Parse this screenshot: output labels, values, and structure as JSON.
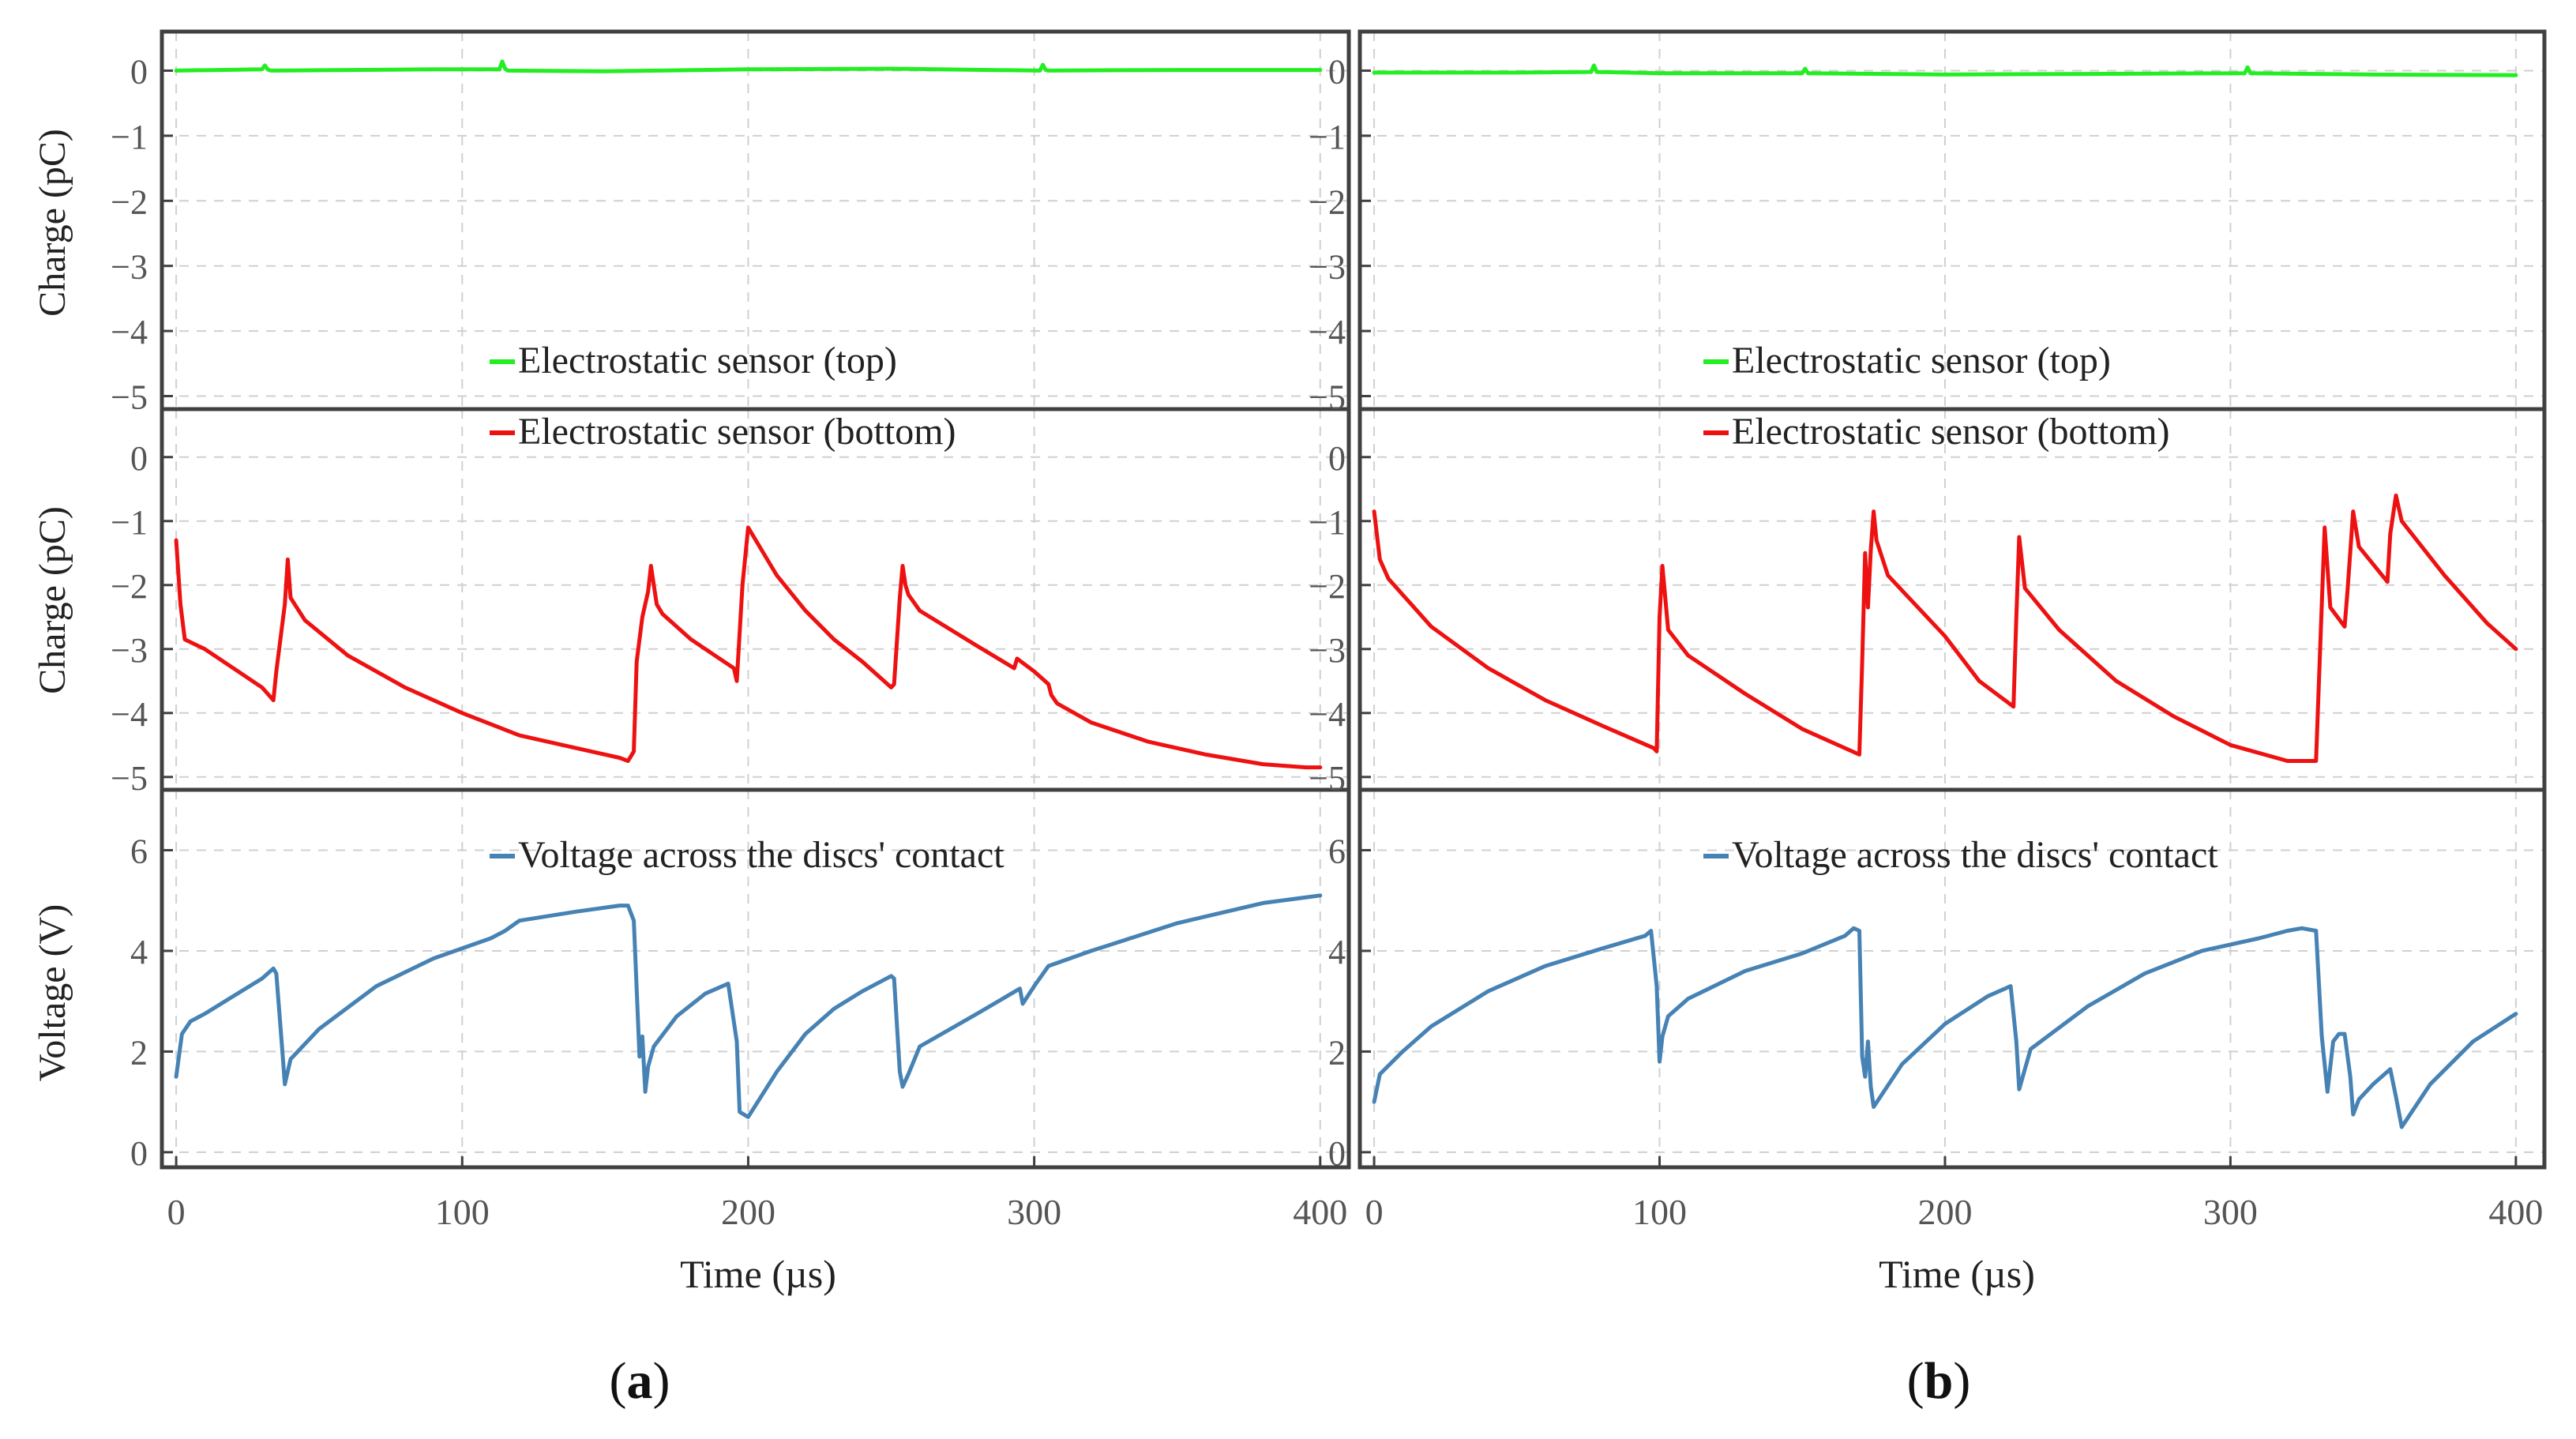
{
  "figure": {
    "x_label": "Time (µs)",
    "x_ticks": [
      0,
      100,
      200,
      300,
      400
    ],
    "x_tick_labels": [
      "0",
      "100",
      "200",
      "300",
      "400"
    ],
    "colors": {
      "top": "#22ee22",
      "bottom": "#ee1111",
      "voltage": "#4682b4",
      "frame": "#404040",
      "grid": "#d0d0d0",
      "tick_text": "#555555"
    }
  },
  "rows": [
    {
      "id": "top",
      "y_label": "Charge (pC)",
      "y_ticks": [
        0,
        -1,
        -2,
        -3,
        -4,
        -5
      ],
      "y_tick_labels": [
        "0",
        "−1",
        "−2",
        "−3",
        "−4",
        "−5"
      ],
      "legend": "Electrostatic sensor (top)",
      "color_key": "top"
    },
    {
      "id": "bottom",
      "y_label": "Charge (pC)",
      "y_ticks": [
        0,
        -1,
        -2,
        -3,
        -4,
        -5
      ],
      "y_tick_labels": [
        "0",
        "−1",
        "−2",
        "−3",
        "−4",
        "−5"
      ],
      "legend": "Electrostatic sensor (bottom)",
      "color_key": "bottom"
    },
    {
      "id": "voltage",
      "y_label": "Voltage (V)",
      "y_ticks": [
        0,
        2,
        4,
        6
      ],
      "y_tick_labels": [
        "0",
        "2",
        "4",
        "6"
      ],
      "legend": "Voltage across the discs' contact",
      "color_key": "voltage"
    }
  ],
  "panels": [
    {
      "id": "a",
      "caption_open": "(",
      "caption_letter": "a",
      "caption_close": ")"
    },
    {
      "id": "b",
      "caption_open": "(",
      "caption_letter": "b",
      "caption_close": ")"
    }
  ],
  "chart_data": [
    {
      "type": "line",
      "panel": "a",
      "title": "Electrostatic sensor (top)",
      "xlabel": "Time (µs)",
      "ylabel": "Charge (pC)",
      "xlim": [
        -5,
        410
      ],
      "ylim": [
        -5.2,
        0.6
      ],
      "x": [
        0,
        30,
        31,
        32,
        33,
        60,
        90,
        113,
        114,
        115,
        116,
        150,
        200,
        250,
        302,
        303,
        304,
        305,
        350,
        400
      ],
      "y": [
        0,
        0.02,
        0.08,
        0.02,
        0,
        0.01,
        0.02,
        0.02,
        0.14,
        0.03,
        0,
        -0.01,
        0.02,
        0.03,
        0,
        0.09,
        0.01,
        0,
        0.01,
        0.01
      ]
    },
    {
      "type": "line",
      "panel": "a",
      "title": "Electrostatic sensor (bottom)",
      "xlabel": "Time (µs)",
      "ylabel": "Charge (pC)",
      "xlim": [
        -5,
        410
      ],
      "ylim": [
        -5.2,
        0.75
      ],
      "x": [
        0,
        1.5,
        3,
        10,
        20,
        30,
        34,
        35,
        38,
        39,
        40,
        45,
        60,
        80,
        100,
        120,
        140,
        155,
        158,
        160,
        161,
        163,
        165,
        166,
        168,
        170,
        180,
        190,
        195,
        196,
        198,
        200,
        210,
        220,
        230,
        240,
        250,
        251,
        253,
        254,
        255,
        256,
        260,
        280,
        293,
        294,
        297,
        300,
        305,
        306,
        308,
        320,
        340,
        360,
        380,
        395,
        400
      ],
      "y": [
        -1.3,
        -2.3,
        -2.85,
        -3.0,
        -3.3,
        -3.6,
        -3.8,
        -3.35,
        -2.3,
        -1.6,
        -2.2,
        -2.55,
        -3.1,
        -3.6,
        -4.0,
        -4.35,
        -4.55,
        -4.7,
        -4.75,
        -4.6,
        -3.2,
        -2.5,
        -2.1,
        -1.7,
        -2.3,
        -2.45,
        -2.85,
        -3.15,
        -3.3,
        -3.5,
        -2.0,
        -1.1,
        -1.85,
        -2.4,
        -2.85,
        -3.2,
        -3.6,
        -3.55,
        -2.2,
        -1.7,
        -2.0,
        -2.15,
        -2.4,
        -2.95,
        -3.3,
        -3.15,
        -3.25,
        -3.35,
        -3.55,
        -3.72,
        -3.85,
        -4.15,
        -4.45,
        -4.65,
        -4.8,
        -4.85,
        -4.85
      ]
    },
    {
      "type": "line",
      "panel": "a",
      "title": "Voltage across the discs' contact",
      "xlabel": "Time (µs)",
      "ylabel": "Voltage (V)",
      "xlim": [
        -5,
        410
      ],
      "ylim": [
        -0.3,
        7.2
      ],
      "x": [
        0,
        2,
        5,
        10,
        20,
        30,
        34,
        35,
        37,
        38,
        40,
        50,
        70,
        90,
        110,
        115,
        120,
        140,
        155,
        158,
        160,
        162,
        163,
        164,
        165,
        167,
        175,
        185,
        193,
        196,
        197,
        200,
        210,
        220,
        230,
        240,
        250,
        251,
        253,
        254,
        256,
        260,
        280,
        295,
        296,
        300,
        305,
        320,
        350,
        380,
        400
      ],
      "y": [
        1.5,
        2.35,
        2.6,
        2.75,
        3.1,
        3.45,
        3.65,
        3.55,
        2.1,
        1.35,
        1.85,
        2.45,
        3.3,
        3.85,
        4.25,
        4.4,
        4.6,
        4.78,
        4.9,
        4.9,
        4.6,
        1.9,
        2.3,
        1.2,
        1.7,
        2.1,
        2.7,
        3.15,
        3.35,
        2.2,
        0.8,
        0.7,
        1.6,
        2.35,
        2.85,
        3.2,
        3.5,
        3.45,
        1.6,
        1.3,
        1.55,
        2.1,
        2.75,
        3.25,
        2.95,
        3.3,
        3.7,
        4.0,
        4.55,
        4.95,
        5.1
      ]
    },
    {
      "type": "line",
      "panel": "b",
      "title": "Electrostatic sensor (top)",
      "xlabel": "Time (µs)",
      "ylabel": "Charge (pC)",
      "xlim": [
        -5,
        410
      ],
      "ylim": [
        -5.2,
        0.6
      ],
      "x": [
        0,
        50,
        76,
        77,
        78,
        100,
        150,
        151,
        152,
        200,
        250,
        305,
        306,
        307,
        350,
        400
      ],
      "y": [
        -0.03,
        -0.03,
        -0.02,
        0.08,
        -0.02,
        -0.04,
        -0.04,
        0.03,
        -0.04,
        -0.06,
        -0.05,
        -0.04,
        0.05,
        -0.04,
        -0.06,
        -0.07
      ]
    },
    {
      "type": "line",
      "panel": "b",
      "title": "Electrostatic sensor (bottom)",
      "xlabel": "Time (µs)",
      "ylabel": "Charge (pC)",
      "xlim": [
        -5,
        410
      ],
      "ylim": [
        -5.2,
        0.75
      ],
      "x": [
        0,
        2,
        5,
        20,
        40,
        60,
        80,
        98,
        99,
        100,
        101,
        103,
        110,
        130,
        150,
        170,
        171,
        172,
        173,
        174,
        175,
        176,
        180,
        200,
        212,
        224,
        225,
        226,
        228,
        240,
        260,
        280,
        300,
        320,
        330,
        331,
        333,
        335,
        340,
        341,
        343,
        345,
        355,
        356,
        358,
        360,
        375,
        390,
        400
      ],
      "y": [
        -0.85,
        -1.6,
        -1.9,
        -2.65,
        -3.3,
        -3.8,
        -4.2,
        -4.55,
        -4.6,
        -2.5,
        -1.7,
        -2.7,
        -3.1,
        -3.7,
        -4.25,
        -4.65,
        -3.2,
        -1.5,
        -2.35,
        -1.45,
        -0.85,
        -1.3,
        -1.85,
        -2.8,
        -3.5,
        -3.9,
        -2.5,
        -1.25,
        -2.05,
        -2.7,
        -3.5,
        -4.05,
        -4.5,
        -4.75,
        -4.75,
        -3.5,
        -1.1,
        -2.35,
        -2.65,
        -2.1,
        -0.85,
        -1.4,
        -1.95,
        -1.2,
        -0.6,
        -1.0,
        -1.85,
        -2.6,
        -3.0
      ]
    },
    {
      "type": "line",
      "panel": "b",
      "title": "Voltage across the discs' contact",
      "xlabel": "Time (µs)",
      "ylabel": "Voltage (V)",
      "xlim": [
        -5,
        410
      ],
      "ylim": [
        -0.3,
        7.2
      ],
      "x": [
        0,
        2,
        10,
        20,
        40,
        60,
        80,
        95,
        97,
        99,
        100,
        101,
        103,
        110,
        130,
        150,
        165,
        168,
        170,
        171,
        172,
        173,
        174,
        175,
        185,
        200,
        215,
        223,
        225,
        226,
        230,
        250,
        270,
        290,
        310,
        320,
        325,
        330,
        332,
        334,
        336,
        338,
        340,
        342,
        343,
        345,
        350,
        356,
        358,
        360,
        370,
        385,
        400
      ],
      "y": [
        1.0,
        1.55,
        2.0,
        2.5,
        3.2,
        3.7,
        4.05,
        4.3,
        4.4,
        3.3,
        1.8,
        2.3,
        2.7,
        3.05,
        3.6,
        3.95,
        4.3,
        4.45,
        4.4,
        1.9,
        1.5,
        2.2,
        1.3,
        0.9,
        1.75,
        2.55,
        3.1,
        3.3,
        2.2,
        1.25,
        2.05,
        2.9,
        3.55,
        4.0,
        4.25,
        4.4,
        4.45,
        4.4,
        2.3,
        1.2,
        2.2,
        2.35,
        2.35,
        1.5,
        0.75,
        1.05,
        1.35,
        1.65,
        1.1,
        0.5,
        1.35,
        2.2,
        2.75
      ]
    }
  ]
}
